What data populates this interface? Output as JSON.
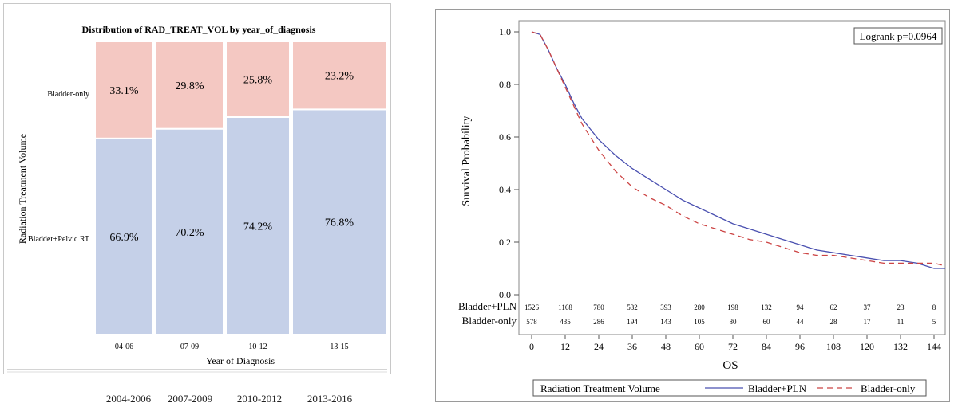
{
  "chart_data": [
    {
      "type": "bar",
      "subtype": "stacked-100",
      "title": "Distribution of RAD_TREAT_VOL by year_of_diagnosis",
      "xlabel": "Year of Diagnosis",
      "ylabel": "Radiation Treatment Volume",
      "categories": [
        "04-06",
        "07-09",
        "10-12",
        "13-15"
      ],
      "series": [
        {
          "name": "Bladder+Pelvic RT",
          "values": [
            66.9,
            70.2,
            74.2,
            76.8
          ],
          "labels": [
            "66.9%",
            "70.2%",
            "74.2%",
            "76.8%"
          ],
          "color": "#c5d0e8"
        },
        {
          "name": "Bladder-only",
          "values": [
            33.1,
            29.8,
            25.8,
            23.2
          ],
          "labels": [
            "33.1%",
            "29.8%",
            "25.8%",
            "23.2%"
          ],
          "color": "#f4c8c2"
        }
      ]
    },
    {
      "type": "line",
      "subtype": "kaplan-meier",
      "xlabel": "OS",
      "ylabel": "Survival Probability",
      "xlim": [
        0,
        148
      ],
      "ylim": [
        0,
        1.0
      ],
      "xticks": [
        0,
        12,
        24,
        36,
        48,
        60,
        72,
        84,
        96,
        108,
        120,
        132,
        144
      ],
      "yticks": [
        "0.0",
        "0.2",
        "0.4",
        "0.6",
        "0.8",
        "1.0"
      ],
      "annotation": "Logrank p=0.0964",
      "legend_title": "Radiation Treatment Volume",
      "series": [
        {
          "name": "Bladder+PLN",
          "color": "#4a50b0",
          "style": "solid",
          "x": [
            0,
            3,
            6,
            9,
            12,
            15,
            18,
            21,
            24,
            30,
            36,
            42,
            48,
            54,
            60,
            66,
            72,
            78,
            84,
            90,
            96,
            102,
            108,
            114,
            120,
            126,
            132,
            138,
            144,
            148
          ],
          "y": [
            1.0,
            0.99,
            0.93,
            0.86,
            0.8,
            0.73,
            0.67,
            0.63,
            0.59,
            0.53,
            0.48,
            0.44,
            0.4,
            0.36,
            0.33,
            0.3,
            0.27,
            0.25,
            0.23,
            0.21,
            0.19,
            0.17,
            0.16,
            0.15,
            0.14,
            0.13,
            0.13,
            0.12,
            0.1,
            0.1
          ],
          "at_risk": [
            1526,
            1168,
            780,
            532,
            393,
            280,
            198,
            132,
            94,
            62,
            37,
            23,
            8
          ]
        },
        {
          "name": "Bladder-only",
          "color": "#cc4444",
          "style": "dashed",
          "x": [
            0,
            3,
            6,
            9,
            12,
            15,
            18,
            21,
            24,
            30,
            36,
            42,
            48,
            54,
            60,
            66,
            72,
            78,
            84,
            90,
            96,
            102,
            108,
            114,
            120,
            126,
            132,
            138,
            144,
            148
          ],
          "y": [
            1.0,
            0.99,
            0.93,
            0.86,
            0.79,
            0.72,
            0.65,
            0.6,
            0.55,
            0.47,
            0.41,
            0.37,
            0.34,
            0.3,
            0.27,
            0.25,
            0.23,
            0.21,
            0.2,
            0.18,
            0.16,
            0.15,
            0.15,
            0.14,
            0.13,
            0.12,
            0.12,
            0.12,
            0.12,
            0.11
          ],
          "at_risk": [
            578,
            435,
            286,
            194,
            143,
            105,
            80,
            60,
            44,
            28,
            17,
            11,
            5
          ]
        }
      ]
    }
  ],
  "year_ranges": [
    "2004-2006",
    "2007-2009",
    "2010-2012",
    "2013-2016"
  ]
}
